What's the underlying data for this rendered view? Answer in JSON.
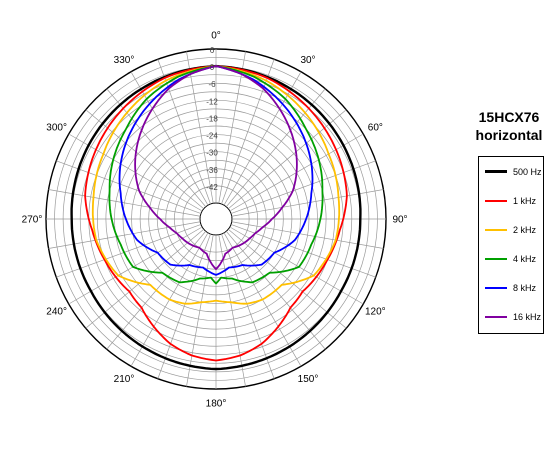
{
  "chart_data": {
    "type": "polar",
    "title": "15HCX76",
    "subtitle": "horizontal",
    "angle_ticks": [
      "0°",
      "30°",
      "60°",
      "90°",
      "120°",
      "150°",
      "180°",
      "210°",
      "240°",
      "270°",
      "300°",
      "330°"
    ],
    "angle_step_grid_deg": 10,
    "db_ticks": [
      "6",
      "0",
      "-6",
      "-12",
      "-18",
      "-24",
      "-30",
      "-36",
      "-42"
    ],
    "rlim": [
      -48,
      6
    ],
    "grid": true,
    "legend_position": "right",
    "series": [
      {
        "name": "500 Hz",
        "color": "#000000",
        "points": [
          [
            0,
            0
          ],
          [
            30,
            -1
          ],
          [
            60,
            -2
          ],
          [
            90,
            -3
          ],
          [
            120,
            -3
          ],
          [
            150,
            -2
          ],
          [
            180,
            -1
          ],
          [
            210,
            -2
          ],
          [
            240,
            -3
          ],
          [
            270,
            -3
          ],
          [
            300,
            -2
          ],
          [
            330,
            -1
          ]
        ]
      },
      {
        "name": "1 kHz",
        "color": "#ff0000",
        "points": [
          [
            0,
            0
          ],
          [
            20,
            -1
          ],
          [
            40,
            -3
          ],
          [
            60,
            -5
          ],
          [
            80,
            -7
          ],
          [
            95,
            -10
          ],
          [
            110,
            -12
          ],
          [
            120,
            -13
          ],
          [
            130,
            -14
          ],
          [
            140,
            -13
          ],
          [
            150,
            -10
          ],
          [
            160,
            -7
          ],
          [
            170,
            -5
          ],
          [
            180,
            -4
          ],
          [
            190,
            -5
          ],
          [
            200,
            -7
          ],
          [
            210,
            -10
          ],
          [
            220,
            -13
          ],
          [
            230,
            -14
          ],
          [
            240,
            -13
          ],
          [
            250,
            -12
          ],
          [
            265,
            -10
          ],
          [
            280,
            -7
          ],
          [
            300,
            -5
          ],
          [
            320,
            -3
          ],
          [
            340,
            -1
          ]
        ]
      },
      {
        "name": "2 kHz",
        "color": "#ffc000",
        "points": [
          [
            0,
            0
          ],
          [
            20,
            -2
          ],
          [
            40,
            -5
          ],
          [
            60,
            -8
          ],
          [
            80,
            -10
          ],
          [
            100,
            -11
          ],
          [
            120,
            -14
          ],
          [
            135,
            -21
          ],
          [
            150,
            -21
          ],
          [
            160,
            -22
          ],
          [
            170,
            -24
          ],
          [
            180,
            -25
          ],
          [
            190,
            -24
          ],
          [
            200,
            -22
          ],
          [
            210,
            -21
          ],
          [
            225,
            -21
          ],
          [
            240,
            -14
          ],
          [
            260,
            -11
          ],
          [
            280,
            -10
          ],
          [
            300,
            -8
          ],
          [
            320,
            -5
          ],
          [
            340,
            -2
          ]
        ]
      },
      {
        "name": "4 kHz",
        "color": "#00a000",
        "points": [
          [
            0,
            0
          ],
          [
            15,
            -2
          ],
          [
            30,
            -5
          ],
          [
            45,
            -9
          ],
          [
            60,
            -12
          ],
          [
            75,
            -15
          ],
          [
            90,
            -17
          ],
          [
            105,
            -19
          ],
          [
            120,
            -20
          ],
          [
            135,
            -27
          ],
          [
            150,
            -28
          ],
          [
            165,
            -32
          ],
          [
            175,
            -33
          ],
          [
            180,
            -31
          ],
          [
            185,
            -33
          ],
          [
            195,
            -32
          ],
          [
            210,
            -28
          ],
          [
            225,
            -27
          ],
          [
            240,
            -20
          ],
          [
            255,
            -19
          ],
          [
            270,
            -17
          ],
          [
            285,
            -15
          ],
          [
            300,
            -12
          ],
          [
            315,
            -9
          ],
          [
            330,
            -5
          ],
          [
            345,
            -2
          ]
        ]
      },
      {
        "name": "8 kHz",
        "color": "#0000ff",
        "points": [
          [
            0,
            0
          ],
          [
            15,
            -3
          ],
          [
            30,
            -7
          ],
          [
            45,
            -11
          ],
          [
            60,
            -15
          ],
          [
            75,
            -19
          ],
          [
            90,
            -22
          ],
          [
            105,
            -25
          ],
          [
            120,
            -30
          ],
          [
            135,
            -31
          ],
          [
            150,
            -35
          ],
          [
            165,
            -36
          ],
          [
            180,
            -34
          ],
          [
            195,
            -36
          ],
          [
            210,
            -35
          ],
          [
            225,
            -31
          ],
          [
            240,
            -30
          ],
          [
            255,
            -25
          ],
          [
            270,
            -22
          ],
          [
            285,
            -19
          ],
          [
            300,
            -15
          ],
          [
            315,
            -11
          ],
          [
            330,
            -7
          ],
          [
            345,
            -3
          ]
        ]
      },
      {
        "name": "16 kHz",
        "color": "#8000a0",
        "points": [
          [
            0,
            0
          ],
          [
            10,
            -2
          ],
          [
            20,
            -5
          ],
          [
            30,
            -9
          ],
          [
            40,
            -13
          ],
          [
            50,
            -17
          ],
          [
            60,
            -21
          ],
          [
            70,
            -25
          ],
          [
            80,
            -30
          ],
          [
            90,
            -34
          ],
          [
            100,
            -37
          ],
          [
            110,
            -39
          ],
          [
            120,
            -40
          ],
          [
            135,
            -41
          ],
          [
            150,
            -42
          ],
          [
            165,
            -41
          ],
          [
            180,
            -36
          ],
          [
            195,
            -41
          ],
          [
            210,
            -42
          ],
          [
            225,
            -41
          ],
          [
            240,
            -40
          ],
          [
            250,
            -39
          ],
          [
            260,
            -37
          ],
          [
            270,
            -34
          ],
          [
            280,
            -30
          ],
          [
            290,
            -25
          ],
          [
            300,
            -21
          ],
          [
            310,
            -17
          ],
          [
            320,
            -13
          ],
          [
            330,
            -9
          ],
          [
            340,
            -5
          ],
          [
            350,
            -2
          ]
        ]
      }
    ]
  }
}
